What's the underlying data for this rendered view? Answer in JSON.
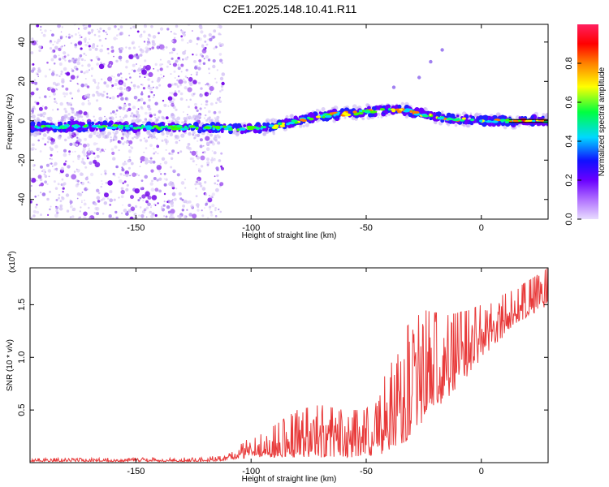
{
  "title": "C2E1.2025.148.10.41.R11",
  "chart_data": [
    {
      "type": "heatmap",
      "xlabel": "Height of straight line (km)",
      "ylabel": "Frequency (Hz)",
      "xlim": [
        -196,
        29
      ],
      "ylim": [
        -50,
        49
      ],
      "xticks": [
        -150,
        -100,
        -50,
        0
      ],
      "yticks": [
        -40,
        -20,
        0,
        20,
        40
      ],
      "colorbar": {
        "label": "Normalized spectral amplitude",
        "range": [
          0,
          1
        ],
        "ticks": [
          0.0,
          0.2,
          0.4,
          0.6,
          0.8
        ],
        "colormap": [
          "#d9c9f5",
          "#7b00ff",
          "#1a1aff",
          "#00e5ff",
          "#00ff40",
          "#ffff00",
          "#ff8000",
          "#ff0000",
          "#ff2060"
        ]
      },
      "ridge": [
        {
          "x": -180,
          "f": -3
        },
        {
          "x": -160,
          "f": -3
        },
        {
          "x": -140,
          "f": -3.5
        },
        {
          "x": -120,
          "f": -3.5
        },
        {
          "x": -100,
          "f": -4
        },
        {
          "x": -90,
          "f": -3
        },
        {
          "x": -80,
          "f": 0
        },
        {
          "x": -70,
          "f": 2.5
        },
        {
          "x": -60,
          "f": 3.5
        },
        {
          "x": -50,
          "f": 4.5
        },
        {
          "x": -40,
          "f": 5.5
        },
        {
          "x": -32,
          "f": 5
        },
        {
          "x": -25,
          "f": 3
        },
        {
          "x": -15,
          "f": 1
        },
        {
          "x": 0,
          "f": 0
        },
        {
          "x": 28,
          "f": 0
        }
      ],
      "noise_region_x": [
        -196,
        -112
      ],
      "features": [
        {
          "x": -38,
          "f": 17
        },
        {
          "x": -27,
          "f": 22
        },
        {
          "x": -22,
          "f": 30
        },
        {
          "x": -17,
          "f": 36
        }
      ]
    },
    {
      "type": "line",
      "xlabel": "Height of straight line (km)",
      "ylabel": "SNR (10 * v/v)",
      "scale_label": "(x10",
      "scale_exp": "4",
      "xlim": [
        -196,
        29
      ],
      "ylim": [
        0,
        1.85
      ],
      "xticks": [
        -150,
        -100,
        -50,
        0
      ],
      "yticks": [
        0.5,
        1.0,
        1.5
      ],
      "color": "#e83a3a",
      "envelope": [
        {
          "x": -196,
          "lo": 0.01,
          "hi": 0.04
        },
        {
          "x": -120,
          "lo": 0.01,
          "hi": 0.05
        },
        {
          "x": -110,
          "lo": 0.02,
          "hi": 0.08
        },
        {
          "x": -100,
          "lo": 0.05,
          "hi": 0.25
        },
        {
          "x": -90,
          "lo": 0.05,
          "hi": 0.35
        },
        {
          "x": -80,
          "lo": 0.05,
          "hi": 0.5
        },
        {
          "x": -70,
          "lo": 0.05,
          "hi": 0.55
        },
        {
          "x": -60,
          "lo": 0.05,
          "hi": 0.5
        },
        {
          "x": -50,
          "lo": 0.05,
          "hi": 0.5
        },
        {
          "x": -40,
          "lo": 0.1,
          "hi": 0.9
        },
        {
          "x": -32,
          "lo": 0.2,
          "hi": 1.3
        },
        {
          "x": -25,
          "lo": 0.4,
          "hi": 1.45
        },
        {
          "x": -15,
          "lo": 0.6,
          "hi": 1.4
        },
        {
          "x": -5,
          "lo": 0.85,
          "hi": 1.45
        },
        {
          "x": 5,
          "lo": 1.1,
          "hi": 1.55
        },
        {
          "x": 15,
          "lo": 1.3,
          "hi": 1.65
        },
        {
          "x": 29,
          "lo": 1.5,
          "hi": 1.85
        }
      ]
    }
  ]
}
